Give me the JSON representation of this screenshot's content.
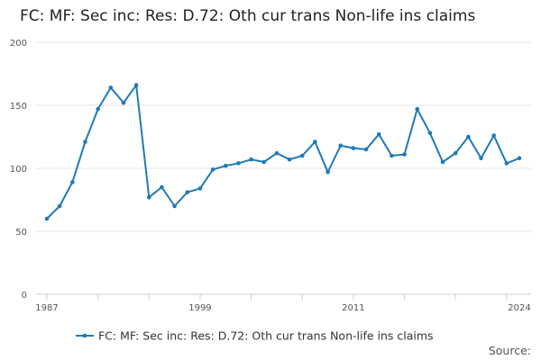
{
  "chart_data": {
    "type": "line",
    "title": "FC: MF: Sec inc: Res: D.72: Oth cur trans Non-life ins claims",
    "xlabel": "",
    "ylabel": "",
    "xlim": [
      1987,
      2024
    ],
    "ylim": [
      0,
      200
    ],
    "y_ticks": [
      0,
      50,
      100,
      150,
      200
    ],
    "x_ticks": [
      1987,
      1999,
      2011,
      2024
    ],
    "grid": true,
    "legend_position": "bottom",
    "color": "#1f7ab5",
    "series": [
      {
        "name": "FC: MF: Sec inc: Res: D.72: Oth cur trans Non-life ins claims",
        "x": [
          1987,
          1988,
          1989,
          1990,
          1991,
          1992,
          1993,
          1994,
          1995,
          1996,
          1997,
          1998,
          1999,
          2000,
          2001,
          2002,
          2003,
          2004,
          2005,
          2006,
          2007,
          2008,
          2009,
          2010,
          2011,
          2012,
          2013,
          2014,
          2015,
          2016,
          2017,
          2018,
          2019,
          2020,
          2021,
          2022,
          2023,
          2024
        ],
        "values": [
          60,
          70,
          89,
          121,
          147,
          164,
          152,
          166,
          77,
          85,
          70,
          81,
          84,
          99,
          102,
          104,
          107,
          105,
          112,
          107,
          110,
          121,
          97,
          118,
          116,
          115,
          127,
          110,
          111,
          147,
          128,
          105,
          112,
          125,
          108,
          126,
          104,
          108
        ]
      }
    ],
    "source_label": "Source:"
  }
}
